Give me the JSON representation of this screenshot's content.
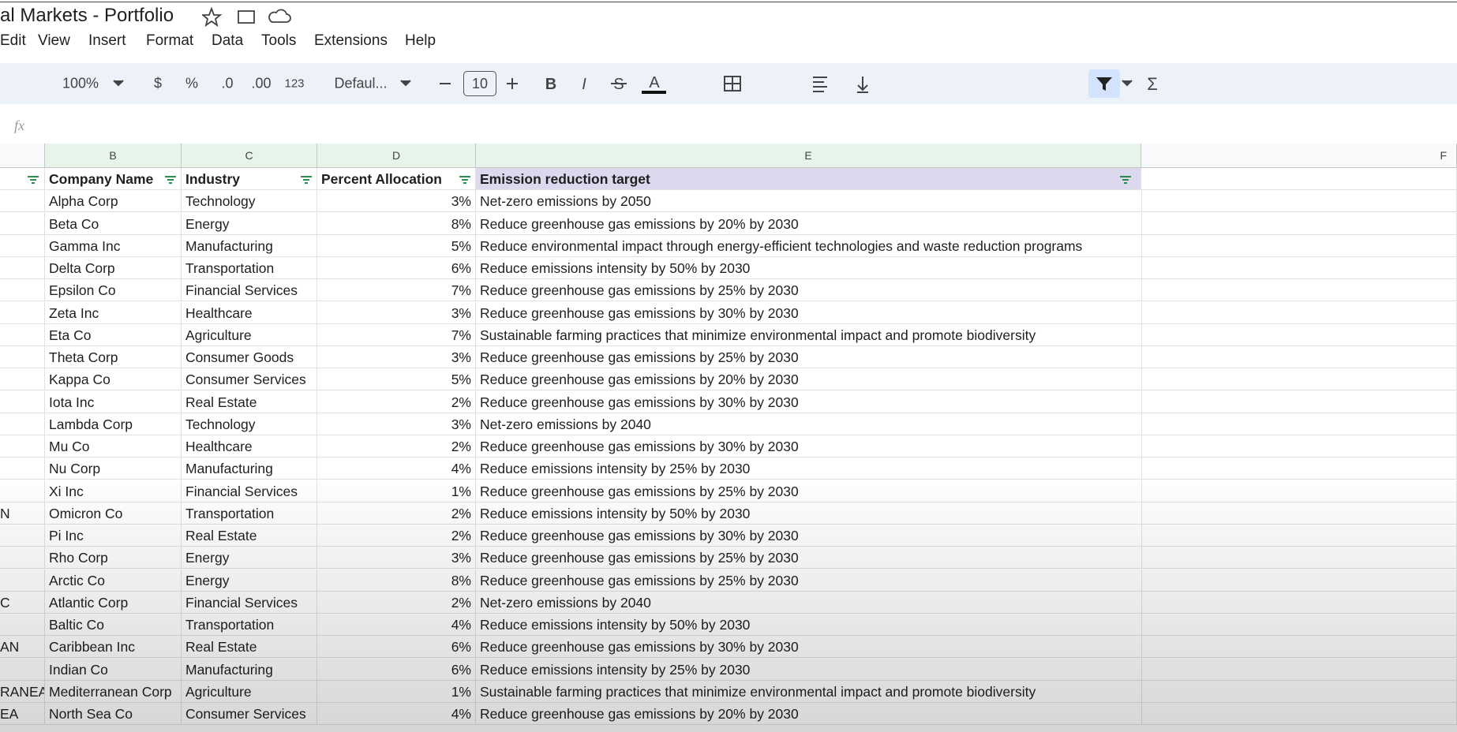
{
  "header": {
    "title": "al Markets - Portfolio"
  },
  "menu": [
    "Edit",
    "View",
    "Insert",
    "Format",
    "Data",
    "Tools",
    "Extensions",
    "Help"
  ],
  "toolbar": {
    "zoom": "100%",
    "currency": "$",
    "percent": "%",
    "decrease_decimal": ".0",
    "increase_decimal": ".00",
    "number_format": "123",
    "font": "Defaul...",
    "font_size": "10"
  },
  "formula_bar": {
    "label": "fx"
  },
  "columns": [
    "B",
    "C",
    "D",
    "E",
    "F"
  ],
  "table": {
    "headers": [
      "Company Name",
      "Industry",
      "Percent Allocation",
      "Emission reduction target"
    ],
    "rows": [
      {
        "cells": [
          "Alpha Corp",
          "Technology",
          "3%",
          "Net-zero emissions by 2050"
        ]
      },
      {
        "cells": [
          "Beta Co",
          "Energy",
          "8%",
          "Reduce greenhouse gas emissions by 20% by 2030"
        ]
      },
      {
        "cells": [
          "Gamma Inc",
          "Manufacturing",
          "5%",
          "Reduce environmental impact through energy-efficient technologies and waste reduction programs"
        ]
      },
      {
        "cells": [
          "Delta Corp",
          "Transportation",
          "6%",
          "Reduce emissions intensity by 50% by 2030"
        ]
      },
      {
        "cells": [
          "Epsilon Co",
          "Financial Services",
          "7%",
          "Reduce greenhouse gas emissions by 25% by 2030"
        ]
      },
      {
        "cells": [
          "Zeta Inc",
          "Healthcare",
          "3%",
          "Reduce greenhouse gas emissions by 30% by 2030"
        ]
      },
      {
        "cells": [
          "Eta Co",
          "Agriculture",
          "7%",
          "Sustainable farming practices that minimize environmental impact and promote biodiversity"
        ]
      },
      {
        "cells": [
          "Theta Corp",
          "Consumer Goods",
          "3%",
          "Reduce greenhouse gas emissions by 25% by 2030"
        ]
      },
      {
        "cells": [
          "Kappa Co",
          "Consumer Services",
          "5%",
          "Reduce greenhouse gas emissions by 20% by 2030"
        ]
      },
      {
        "cells": [
          "Iota Inc",
          "Real Estate",
          "2%",
          "Reduce greenhouse gas emissions by 30% by 2030"
        ]
      },
      {
        "cells": [
          "Lambda Corp",
          "Technology",
          "3%",
          "Net-zero emissions by 2040"
        ]
      },
      {
        "cells": [
          "Mu Co",
          "Healthcare",
          "2%",
          "Reduce greenhouse gas emissions by 30% by 2030"
        ]
      },
      {
        "cells": [
          "Nu Corp",
          "Manufacturing",
          "4%",
          "Reduce emissions intensity by 25% by 2030"
        ]
      },
      {
        "cells": [
          "Xi Inc",
          "Financial Services",
          "1%",
          "Reduce greenhouse gas emissions by 25% by 2030"
        ]
      },
      {
        "a": "N",
        "cells": [
          "Omicron Co",
          "Transportation",
          "2%",
          "Reduce emissions intensity by 50% by 2030"
        ]
      },
      {
        "cells": [
          "Pi Inc",
          "Real Estate",
          "2%",
          "Reduce greenhouse gas emissions by 30% by 2030"
        ]
      },
      {
        "cells": [
          "Rho Corp",
          "Energy",
          "3%",
          "Reduce greenhouse gas emissions by 25% by 2030"
        ]
      },
      {
        "cells": [
          "Arctic Co",
          "Energy",
          "8%",
          "Reduce greenhouse gas emissions by 25% by 2030"
        ]
      },
      {
        "a": "C",
        "cells": [
          "Atlantic Corp",
          "Financial Services",
          "2%",
          "Net-zero emissions by 2040"
        ]
      },
      {
        "cells": [
          "Baltic Co",
          "Transportation",
          "4%",
          "Reduce emissions intensity by 50% by 2030"
        ]
      },
      {
        "a": "AN",
        "cells": [
          "Caribbean Inc",
          "Real Estate",
          "6%",
          "Reduce greenhouse gas emissions by 30% by 2030"
        ]
      },
      {
        "cells": [
          "Indian Co",
          "Manufacturing",
          "6%",
          "Reduce emissions intensity by 25% by 2030"
        ]
      },
      {
        "a": "RANEA",
        "cells": [
          "Mediterranean Corp",
          "Agriculture",
          "1%",
          "Sustainable farming practices that minimize environmental impact and promote biodiversity"
        ]
      },
      {
        "a": "EA",
        "cells": [
          "North Sea Co",
          "Consumer Services",
          "4%",
          "Reduce greenhouse gas emissions by 20% by 2030"
        ]
      }
    ]
  }
}
